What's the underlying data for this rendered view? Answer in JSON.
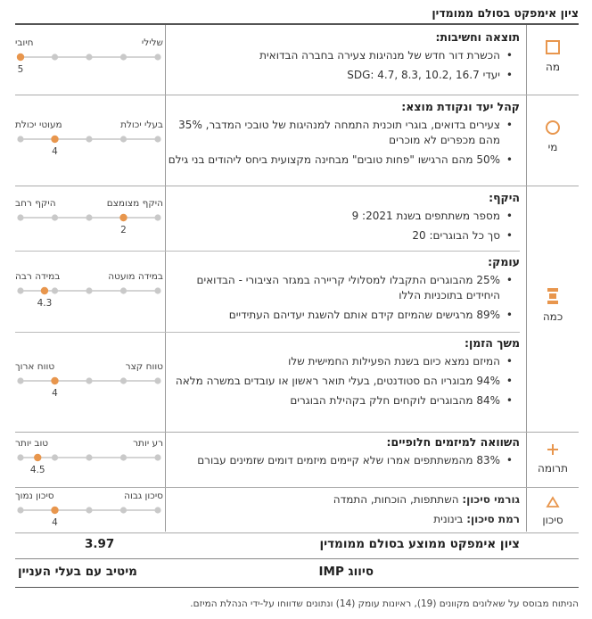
{
  "title": "ציון אימפקט בסולם ממומדין",
  "colors": {
    "accent": "#e8964d",
    "dot": "#c9c9c9",
    "line": "#bbbbbb"
  },
  "categories": [
    {
      "label": "מה",
      "icon": "square-icon"
    },
    {
      "label": "מי",
      "icon": "circle-icon"
    },
    {
      "label": "כמה",
      "icon": "stack-icon"
    },
    {
      "label": "תרומה",
      "icon": "plus-icon"
    },
    {
      "label": "סיכון",
      "icon": "triangle-icon"
    }
  ],
  "sections": [
    {
      "heading": "תוצאה וחשיבות:",
      "bullets": [
        "הכשרת דור חדש של מנהיגות צעירה בחברה הבדואית",
        "יעדי SDG: 4.7, 8.3, 10.2, 16.7"
      ],
      "scale": {
        "right": "שלילי",
        "left": "חיובי",
        "value": "5",
        "position": 5
      }
    },
    {
      "heading": "קהל יעד ונקודת מוצא:",
      "bullets": [
        "צעירים בדואים, בוגרי תוכנית התמחה למנהיגות של טובכי המדבר, 35% מהם מכפרים לא מוכרים",
        "50% מהם הרגישו \"פחות טובים\" מבחינה מקצועית ביחס ליהודים בני גילם"
      ],
      "scale": {
        "right": "בעלי יכולת",
        "left": "מעוטי יכולת",
        "value": "4",
        "position": 4
      }
    },
    {
      "heading": "היקף:",
      "bullets": [
        "מספר משתתפים בשנת 2021: 9",
        "סך כל הבוגרים: 20"
      ],
      "scale": {
        "right": "היקף מצומצם",
        "left": "היקף רחב",
        "value": "2",
        "position": 2
      }
    },
    {
      "heading": "עומק:",
      "bullets": [
        "25% מהבוגרים התקבלו למסלולי קריירה במגזר הציבורי - הבדואים היחידים בתוכניות הללו",
        "89% מרגישים שהמיזם קידם אותם להשגת יעדיהם העתידיים"
      ],
      "scale": {
        "right": "במידה מועטה",
        "left": "במידה רבה",
        "value": "4.3",
        "position": 4.3
      }
    },
    {
      "heading": "משך הזמן:",
      "bullets": [
        "המיזם נמצא כיום בשנת הפעילות החמישית שלו",
        "94% מבוגריו הם סטודנטים, בעלי תואר ראשון או עובדים במשרה מלאה",
        "84% מהבוגרים לוקחים חלק בקהילת הבוגרים"
      ],
      "scale": {
        "right": "טווח קצר",
        "left": "טווח ארוך",
        "value": "4",
        "position": 4
      }
    },
    {
      "heading": "השוואה למיזמים חלופיים:",
      "bullets": [
        "83% מהמשתתפים אמרו שלא קיימים מיזמים דומים שזמינים עבורם"
      ],
      "scale": {
        "right": "רע יותר",
        "left": "טוב יותר",
        "value": "4.5",
        "position": 4.5
      }
    },
    {
      "risk_factors_label": "גורמי סיכון:",
      "risk_factors_value": "השתתפות, הוכחות, התמדה",
      "risk_level_label": "רמת סיכון:",
      "risk_level_value": "בינונית",
      "scale": {
        "right": "סיכון גבוה",
        "left": "סיכון נמוך",
        "value": "4",
        "position": 4
      }
    }
  ],
  "summary": {
    "label": "ציון אימפקט ממוצע בסולם ממומדין",
    "score": "3.97"
  },
  "imp": {
    "label": "סיווג IMP",
    "value": "מיטיב עם בעלי העניין"
  },
  "footnote": "הניתוח מבוסס על שאלונים מקוונים (19), ראיונות עומק (14) ונתונים שדווחו על-ידי הנהלת המיזם."
}
